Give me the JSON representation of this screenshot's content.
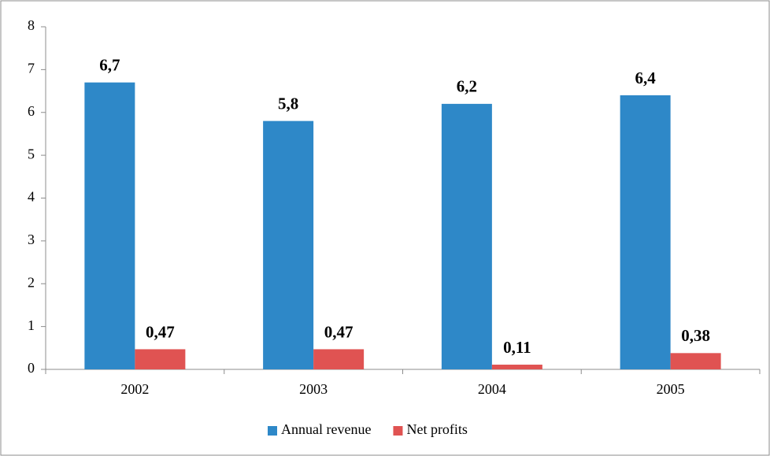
{
  "chart_data": {
    "type": "bar",
    "categories": [
      "2002",
      "2003",
      "2004",
      "2005"
    ],
    "series": [
      {
        "name": "Annual revenue",
        "color": "#2e88c8",
        "values": [
          6.7,
          5.8,
          6.2,
          6.4
        ],
        "value_labels": [
          "6,7",
          "5,8",
          "6,2",
          "6,4"
        ]
      },
      {
        "name": "Net profits",
        "color": "#e05352",
        "values": [
          0.47,
          0.47,
          0.11,
          0.38
        ],
        "value_labels": [
          "0,47",
          "0,47",
          "0,11",
          "0,38"
        ]
      }
    ],
    "ylim": [
      0,
      8
    ],
    "yticks": [
      0,
      1,
      2,
      3,
      4,
      5,
      6,
      7,
      8
    ],
    "grid": false,
    "legend": "bottom"
  }
}
